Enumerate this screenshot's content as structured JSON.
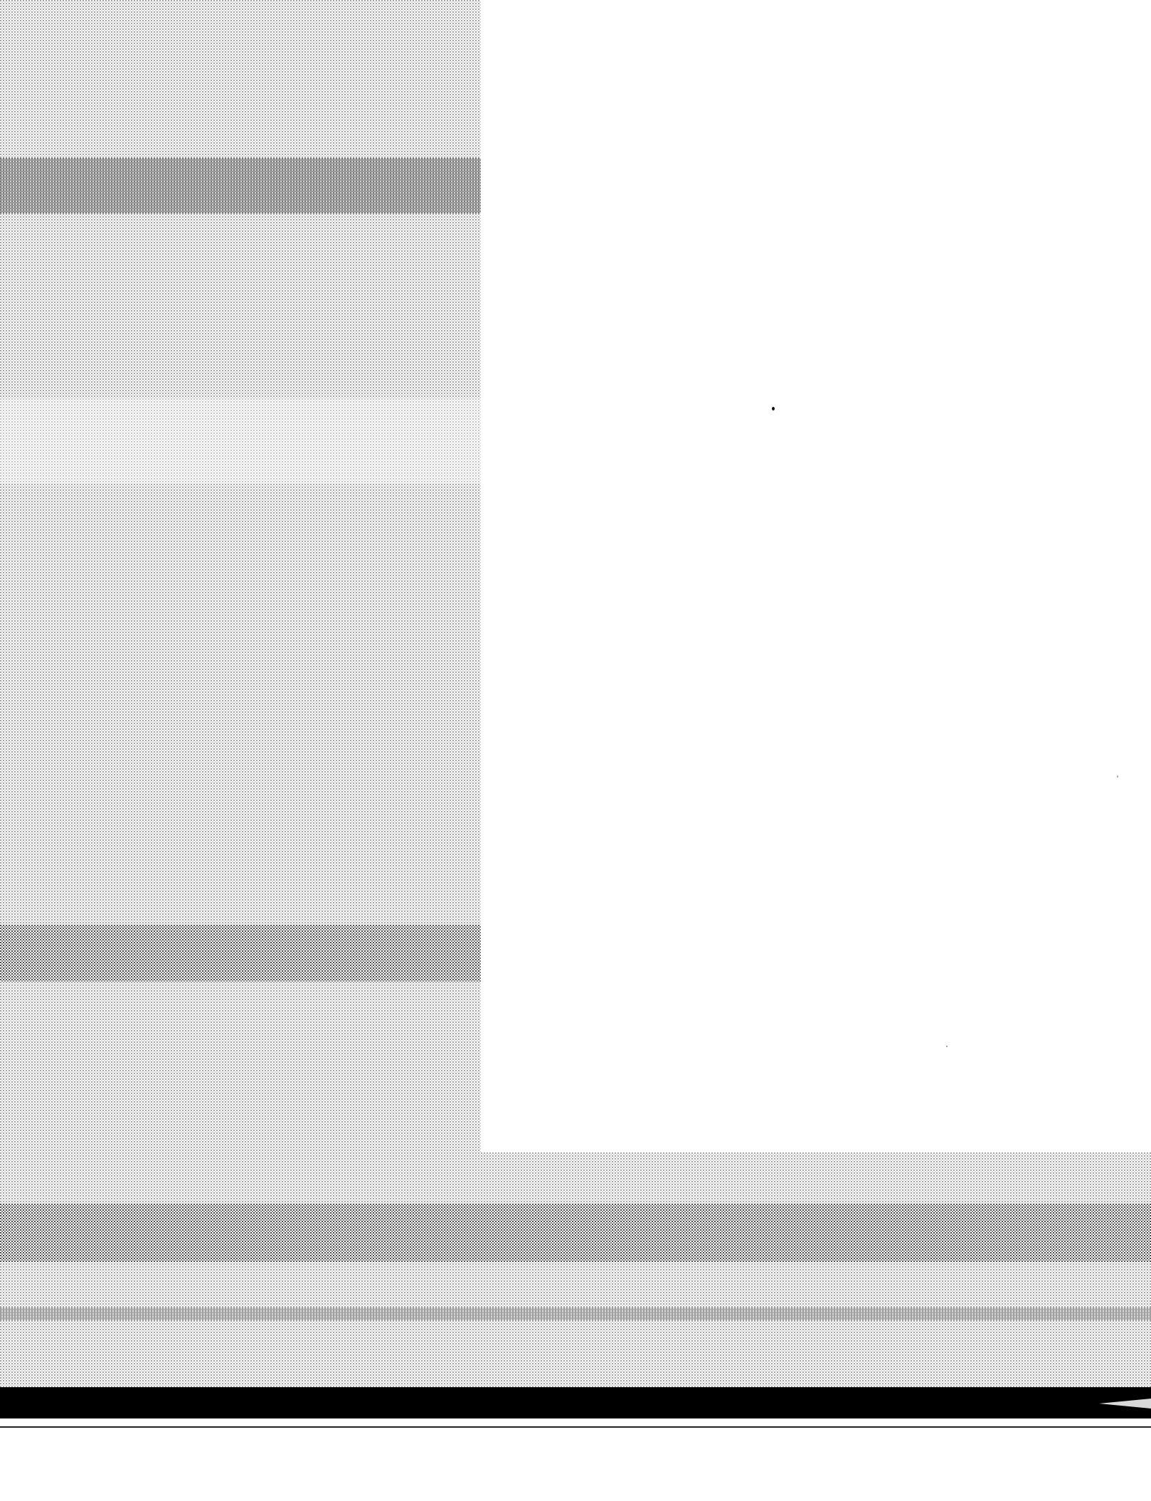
{
  "page": {
    "background_color": "#ffffff",
    "ink_color": "#000000",
    "texture": "halftone-dot-screen",
    "text": []
  }
}
